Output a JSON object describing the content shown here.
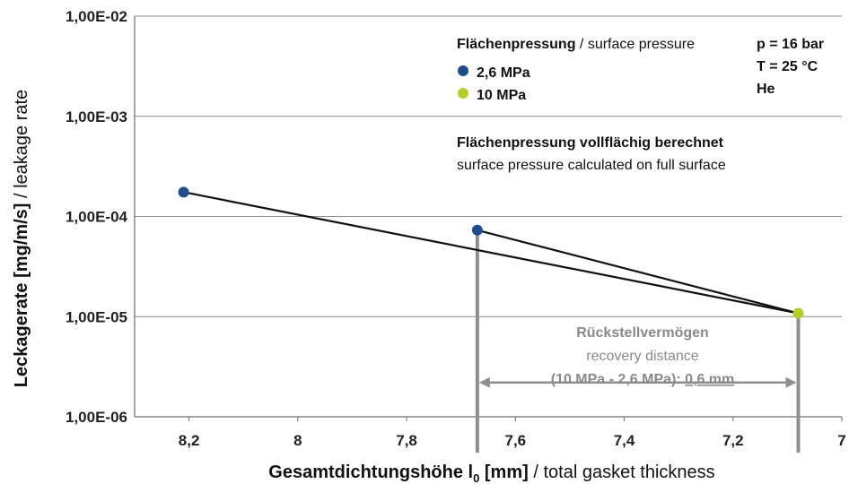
{
  "chart_data": {
    "type": "scatter",
    "x_axis": {
      "label_bold": "Gesamtdichtungshöhe l",
      "label_sub": "0",
      "label_unit": " [mm]",
      "label_rest": " / total gasket thickness",
      "range": [
        8.3,
        7.0
      ],
      "reversed": true,
      "ticks": [
        8.2,
        8.0,
        7.8,
        7.6,
        7.4,
        7.2,
        7.0
      ],
      "tick_labels": [
        "8,2",
        "8",
        "7,8",
        "7,6",
        "7,4",
        "7,2",
        "7"
      ]
    },
    "y_axis": {
      "label_bold": "Leckagerate [mg/m/s]",
      "label_rest": " / leakage rate",
      "scale": "log",
      "range": [
        1e-06,
        0.01
      ],
      "ticks": [
        1e-06,
        1e-05,
        0.0001,
        0.001,
        0.01
      ],
      "tick_labels": [
        "1,00E-06",
        "1,00E-05",
        "1,00E-04",
        "1,00E-03",
        "1,00E-02"
      ]
    },
    "grid": "horizontal",
    "series": [
      {
        "name": "2,6 MPa",
        "color": "#1f4e8c",
        "points": [
          [
            8.21,
            0.000175
          ],
          [
            7.67,
            7.3e-05
          ]
        ]
      },
      {
        "name": "10 MPa",
        "color": "#b5cc2a",
        "points": [
          [
            7.08,
            1.08e-05
          ]
        ]
      }
    ],
    "lines": [
      {
        "from": [
          8.21,
          0.000175
        ],
        "to": [
          7.08,
          1.08e-05
        ]
      },
      {
        "from": [
          7.67,
          7.3e-05
        ],
        "to": [
          7.08,
          1.08e-05
        ]
      }
    ],
    "recovery": {
      "x_start": 7.67,
      "x_end": 7.08,
      "arrow_y": 2.2e-06
    },
    "legend": {
      "title_bold": "Flächenpressung",
      "title_rest": " / surface pressure",
      "placement": "top-right"
    },
    "conditions": [
      "p = 16 bar",
      "T = 25 °C",
      "He"
    ],
    "note": {
      "line1": "Flächenpressung vollflächig berechnet",
      "line2": "surface pressure calculated on full surface"
    },
    "recovery_text": {
      "line1": "Rückstellvermögen",
      "line2": "recovery distance",
      "line3_a": "(10 MPa - 2,6 MPa): ",
      "line3_b": "0,6 mm"
    }
  }
}
